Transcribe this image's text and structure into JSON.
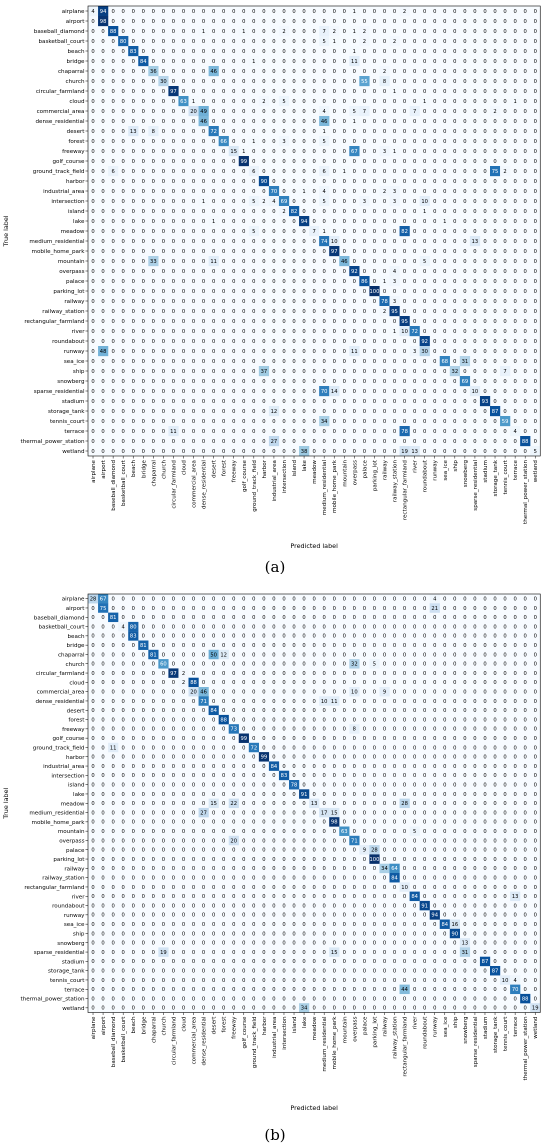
{
  "labels": [
    "airplane",
    "airport",
    "baseball_diamond",
    "basketball_court",
    "beach",
    "bridge",
    "chaparral",
    "church",
    "circular_farmland",
    "cloud",
    "commercial_area",
    "dense_residential",
    "desert",
    "forest",
    "freeway",
    "golf_course",
    "ground_track_field",
    "harbor",
    "industrial_area",
    "intersection",
    "island",
    "lake",
    "meadow",
    "medium_residential",
    "mobile_home_park",
    "mountain",
    "overpass",
    "palace",
    "parking_lot",
    "railway",
    "railway_station",
    "rectangular_farmland",
    "river",
    "roundabout",
    "runway",
    "sea_ice",
    "ship",
    "snowberg",
    "sparse_residential",
    "stadium",
    "storage_tank",
    "tennis_court",
    "terrace",
    "thermal_power_station",
    "wetland"
  ],
  "chart_data": [
    {
      "type": "heatmap",
      "panel_label": "(a)",
      "xlabel": "Predicted label",
      "ylabel": "True label",
      "vmax": 100,
      "entries": [
        [
          0,
          0,
          4
        ],
        [
          0,
          1,
          94
        ],
        [
          0,
          26,
          1
        ],
        [
          0,
          31,
          2
        ],
        [
          1,
          1,
          98
        ],
        [
          2,
          2,
          88
        ],
        [
          2,
          11,
          1
        ],
        [
          2,
          15,
          1
        ],
        [
          2,
          19,
          2
        ],
        [
          2,
          23,
          7
        ],
        [
          2,
          24,
          2
        ],
        [
          2,
          26,
          1
        ],
        [
          2,
          27,
          2
        ],
        [
          3,
          3,
          80
        ],
        [
          3,
          23,
          5
        ],
        [
          3,
          24,
          1
        ],
        [
          3,
          27,
          2
        ],
        [
          3,
          30,
          2
        ],
        [
          4,
          4,
          83
        ],
        [
          4,
          26,
          1
        ],
        [
          5,
          5,
          84
        ],
        [
          5,
          16,
          1
        ],
        [
          5,
          26,
          11
        ],
        [
          6,
          6,
          36
        ],
        [
          6,
          12,
          46
        ],
        [
          6,
          29,
          2
        ],
        [
          7,
          7,
          30
        ],
        [
          7,
          27,
          55
        ],
        [
          7,
          29,
          8
        ],
        [
          8,
          8,
          97
        ],
        [
          8,
          30,
          1
        ],
        [
          9,
          9,
          63
        ],
        [
          9,
          10,
          1
        ],
        [
          9,
          17,
          2
        ],
        [
          9,
          19,
          5
        ],
        [
          9,
          33,
          1
        ],
        [
          9,
          42,
          1
        ],
        [
          10,
          10,
          20
        ],
        [
          10,
          11,
          49
        ],
        [
          10,
          23,
          4
        ],
        [
          10,
          26,
          5
        ],
        [
          10,
          27,
          7
        ],
        [
          10,
          32,
          7
        ],
        [
          10,
          40,
          2
        ],
        [
          11,
          11,
          46
        ],
        [
          11,
          23,
          46
        ],
        [
          11,
          26,
          1
        ],
        [
          12,
          4,
          13
        ],
        [
          12,
          6,
          8
        ],
        [
          12,
          12,
          72
        ],
        [
          12,
          23,
          1
        ],
        [
          13,
          13,
          66
        ],
        [
          13,
          16,
          1
        ],
        [
          13,
          19,
          3
        ],
        [
          13,
          23,
          5
        ],
        [
          14,
          14,
          15
        ],
        [
          14,
          15,
          1
        ],
        [
          14,
          26,
          67
        ],
        [
          14,
          29,
          3
        ],
        [
          14,
          30,
          1
        ],
        [
          15,
          15,
          99
        ],
        [
          16,
          2,
          6
        ],
        [
          16,
          16,
          6
        ],
        [
          16,
          23,
          6
        ],
        [
          16,
          25,
          1
        ],
        [
          16,
          40,
          75
        ],
        [
          16,
          41,
          2
        ],
        [
          17,
          17,
          90
        ],
        [
          18,
          18,
          70
        ],
        [
          18,
          21,
          1
        ],
        [
          18,
          23,
          4
        ],
        [
          18,
          29,
          2
        ],
        [
          18,
          30,
          3
        ],
        [
          19,
          11,
          1
        ],
        [
          19,
          16,
          5
        ],
        [
          19,
          17,
          2
        ],
        [
          19,
          18,
          4
        ],
        [
          19,
          19,
          69
        ],
        [
          19,
          23,
          5
        ],
        [
          19,
          27,
          3
        ],
        [
          19,
          30,
          3
        ],
        [
          19,
          33,
          10
        ],
        [
          20,
          19,
          2
        ],
        [
          20,
          20,
          82
        ],
        [
          20,
          33,
          1
        ],
        [
          21,
          12,
          1
        ],
        [
          21,
          21,
          94
        ],
        [
          21,
          35,
          1
        ],
        [
          22,
          16,
          5
        ],
        [
          22,
          22,
          7
        ],
        [
          22,
          23,
          1
        ],
        [
          22,
          31,
          82
        ],
        [
          23,
          23,
          74
        ],
        [
          23,
          24,
          10
        ],
        [
          23,
          38,
          13
        ],
        [
          24,
          24,
          97
        ],
        [
          25,
          6,
          33
        ],
        [
          25,
          12,
          11
        ],
        [
          25,
          25,
          46
        ],
        [
          25,
          33,
          5
        ],
        [
          26,
          26,
          92
        ],
        [
          26,
          30,
          4
        ],
        [
          27,
          27,
          86
        ],
        [
          27,
          29,
          1
        ],
        [
          27,
          30,
          3
        ],
        [
          28,
          28,
          100
        ],
        [
          29,
          29,
          78
        ],
        [
          29,
          30,
          3
        ],
        [
          30,
          29,
          2
        ],
        [
          30,
          30,
          95
        ],
        [
          31,
          31,
          95
        ],
        [
          32,
          30,
          1
        ],
        [
          32,
          31,
          10
        ],
        [
          32,
          32,
          72
        ],
        [
          33,
          33,
          92
        ],
        [
          34,
          1,
          48
        ],
        [
          34,
          26,
          11
        ],
        [
          34,
          32,
          3
        ],
        [
          34,
          33,
          30
        ],
        [
          35,
          35,
          68
        ],
        [
          35,
          37,
          31
        ],
        [
          36,
          17,
          37
        ],
        [
          36,
          36,
          32
        ],
        [
          36,
          41,
          7
        ],
        [
          37,
          37,
          69
        ],
        [
          38,
          23,
          70
        ],
        [
          38,
          24,
          14
        ],
        [
          38,
          38,
          10
        ],
        [
          39,
          39,
          93
        ],
        [
          40,
          18,
          12
        ],
        [
          40,
          40,
          87
        ],
        [
          41,
          23,
          34
        ],
        [
          41,
          41,
          59
        ],
        [
          42,
          8,
          11
        ],
        [
          42,
          31,
          78
        ],
        [
          42,
          42,
          4
        ],
        [
          43,
          18,
          27
        ],
        [
          43,
          43,
          88
        ],
        [
          44,
          21,
          38
        ],
        [
          44,
          31,
          19
        ],
        [
          44,
          32,
          13
        ],
        [
          44,
          44,
          5
        ]
      ]
    },
    {
      "type": "heatmap",
      "panel_label": "(b)",
      "xlabel": "Predicted label",
      "ylabel": "True label",
      "vmax": 100,
      "entries": [
        [
          0,
          0,
          28
        ],
        [
          0,
          1,
          67
        ],
        [
          0,
          34,
          4
        ],
        [
          1,
          1,
          75
        ],
        [
          1,
          34,
          21
        ],
        [
          2,
          2,
          81
        ],
        [
          3,
          3,
          4
        ],
        [
          3,
          4,
          80
        ],
        [
          4,
          4,
          83
        ],
        [
          5,
          5,
          81
        ],
        [
          6,
          6,
          81
        ],
        [
          6,
          12,
          50
        ],
        [
          6,
          13,
          12
        ],
        [
          7,
          7,
          60
        ],
        [
          7,
          26,
          32
        ],
        [
          7,
          28,
          5
        ],
        [
          8,
          8,
          97
        ],
        [
          8,
          9,
          2
        ],
        [
          9,
          9,
          2
        ],
        [
          9,
          10,
          88
        ],
        [
          10,
          10,
          20
        ],
        [
          10,
          11,
          46
        ],
        [
          10,
          26,
          10
        ],
        [
          10,
          29,
          9
        ],
        [
          11,
          11,
          71
        ],
        [
          11,
          23,
          10
        ],
        [
          11,
          24,
          11
        ],
        [
          12,
          12,
          84
        ],
        [
          13,
          13,
          88
        ],
        [
          14,
          14,
          73
        ],
        [
          14,
          26,
          8
        ],
        [
          15,
          15,
          99
        ],
        [
          16,
          2,
          11
        ],
        [
          16,
          16,
          72
        ],
        [
          17,
          17,
          99
        ],
        [
          18,
          18,
          84
        ],
        [
          19,
          19,
          83
        ],
        [
          20,
          20,
          78
        ],
        [
          21,
          21,
          91
        ],
        [
          22,
          12,
          15
        ],
        [
          22,
          14,
          22
        ],
        [
          22,
          22,
          13
        ],
        [
          22,
          31,
          28
        ],
        [
          23,
          11,
          27
        ],
        [
          23,
          23,
          17
        ],
        [
          23,
          24,
          15
        ],
        [
          24,
          24,
          98
        ],
        [
          25,
          25,
          63
        ],
        [
          25,
          32,
          5
        ],
        [
          26,
          14,
          20
        ],
        [
          26,
          26,
          71
        ],
        [
          27,
          27,
          9
        ],
        [
          27,
          28,
          28
        ],
        [
          28,
          28,
          100
        ],
        [
          29,
          29,
          34
        ],
        [
          29,
          30,
          64
        ],
        [
          30,
          30,
          84
        ],
        [
          31,
          31,
          10
        ],
        [
          32,
          32,
          84
        ],
        [
          32,
          42,
          13
        ],
        [
          33,
          33,
          91
        ],
        [
          34,
          34,
          94
        ],
        [
          35,
          35,
          84
        ],
        [
          35,
          36,
          16
        ],
        [
          36,
          36,
          90
        ],
        [
          37,
          37,
          13
        ],
        [
          38,
          7,
          19
        ],
        [
          38,
          24,
          15
        ],
        [
          38,
          37,
          31
        ],
        [
          39,
          39,
          87
        ],
        [
          40,
          40,
          87
        ],
        [
          41,
          41,
          10
        ],
        [
          41,
          42,
          4
        ],
        [
          42,
          31,
          44
        ],
        [
          42,
          42,
          70
        ],
        [
          43,
          43,
          88
        ],
        [
          44,
          21,
          34
        ],
        [
          44,
          44,
          19
        ]
      ]
    }
  ]
}
